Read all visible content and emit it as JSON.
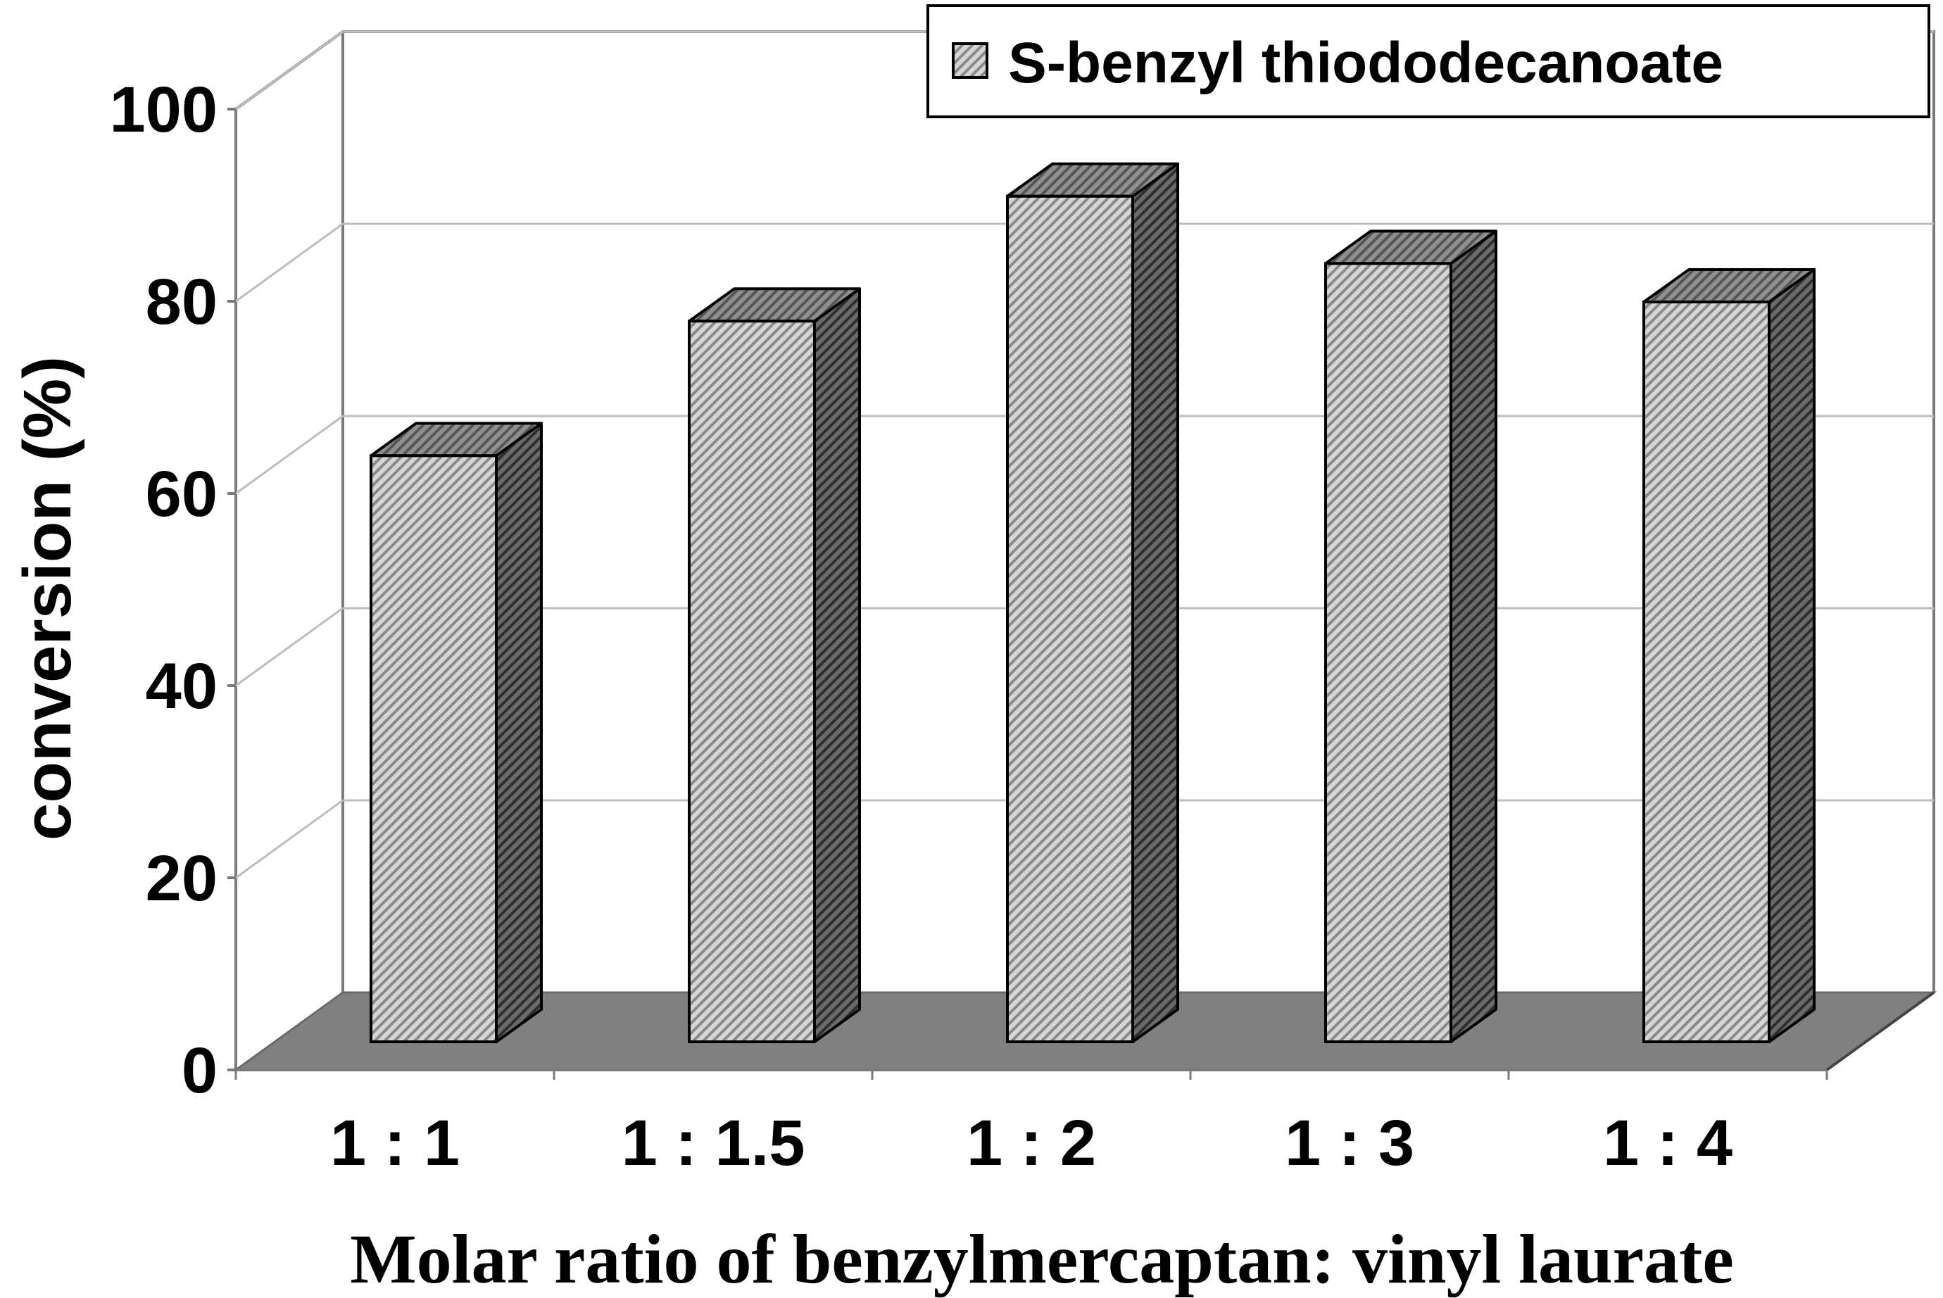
{
  "chart_data": {
    "type": "bar",
    "title": "",
    "xlabel": "Molar ratio of benzylmercaptan: vinyl laurate",
    "ylabel": "conversion (%)",
    "ylim": [
      0,
      100
    ],
    "yticks": [
      "0",
      "20",
      "40",
      "60",
      "80",
      "100"
    ],
    "categories": [
      "1 : 1",
      "1 : 1.5",
      "1 : 2",
      "1 : 3",
      "1 : 4"
    ],
    "series": [
      {
        "name": "S-benzyl thiododecanoate",
        "values": [
          61,
          75,
          88,
          81,
          77
        ]
      }
    ],
    "legend": "top-right",
    "grid": true,
    "colors": {
      "bar_front": "#b8b8b8",
      "bar_side": "#5a5a5a",
      "bar_top": "#7a7a7a",
      "floor": "#808080",
      "gridline": "#c0c0c0"
    }
  }
}
